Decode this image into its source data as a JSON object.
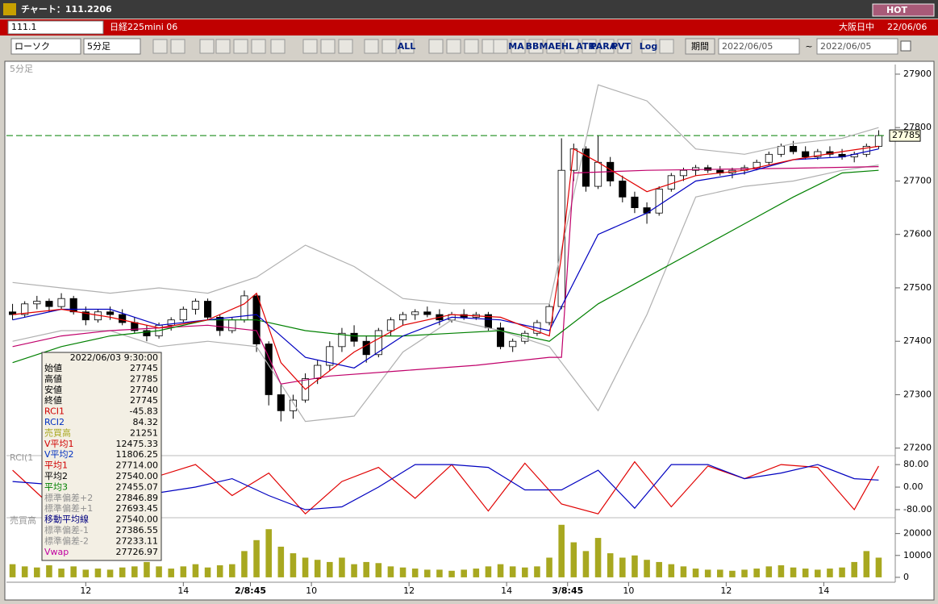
{
  "window": {
    "title": "チャート：111.2206",
    "hot": "HOT"
  },
  "toolbar": {
    "symbol": "111.1",
    "name": "日経225mini 06",
    "session": "大阪日中",
    "date": "22/06/06",
    "chart_type": "ローソク",
    "interval": "5分足",
    "period_button": "期間",
    "from": "2022/06/05",
    "tilde": "~",
    "to": "2022/06/05",
    "icon_labels": [
      "ALL",
      "MA",
      "BB",
      "MAE",
      "HL",
      "ATR",
      "PARA",
      "PVT",
      "Log"
    ]
  },
  "info_panel": {
    "datetime": "2022/06/03 9:30:00",
    "rows": [
      {
        "label": "始値",
        "value": "27745",
        "color": "#000000"
      },
      {
        "label": "高値",
        "value": "27785",
        "color": "#000000"
      },
      {
        "label": "安値",
        "value": "27740",
        "color": "#000000"
      },
      {
        "label": "終値",
        "value": "27745",
        "color": "#000000"
      },
      {
        "label": "RCI1",
        "value": "-45.83",
        "color": "#d00000"
      },
      {
        "label": "RCI2",
        "value": "84.32",
        "color": "#0030c0"
      },
      {
        "label": "売買高",
        "value": "21251",
        "color": "#a8a820"
      },
      {
        "label": "V平均1",
        "value": "12475.33",
        "color": "#d00000"
      },
      {
        "label": "V平均2",
        "value": "11806.25",
        "color": "#0030c0"
      },
      {
        "label": "平均1",
        "value": "27714.00",
        "color": "#d00000"
      },
      {
        "label": "平均2",
        "value": "27540.00",
        "color": "#000000"
      },
      {
        "label": "平均3",
        "value": "27455.07",
        "color": "#008000"
      },
      {
        "label": "標準偏差+2",
        "value": "27846.89",
        "color": "#909090"
      },
      {
        "label": "標準偏差+1",
        "value": "27693.45",
        "color": "#909090"
      },
      {
        "label": "移動平均線",
        "value": "27540.00",
        "color": "#000080"
      },
      {
        "label": "標準偏差-1",
        "value": "27386.55",
        "color": "#909090"
      },
      {
        "label": "標準偏差-2",
        "value": "27233.11",
        "color": "#909090"
      },
      {
        "label": "Vwap",
        "value": "27726.97",
        "color": "#c000a0"
      }
    ]
  },
  "chart_data": [
    {
      "type": "candlestick",
      "label": "5分足",
      "xlim": [
        -0.5,
        71.5
      ],
      "ylim": [
        27189,
        27912
      ],
      "yticks": [
        27200,
        27300,
        27400,
        27500,
        27600,
        27700,
        27800,
        27900
      ],
      "last_price": 27785,
      "last_price_color": "#008000",
      "ohlc": [
        [
          27455,
          27470,
          27440,
          27450
        ],
        [
          27450,
          27475,
          27445,
          27470
        ],
        [
          27470,
          27485,
          27460,
          27475
        ],
        [
          27475,
          27480,
          27455,
          27465
        ],
        [
          27465,
          27490,
          27460,
          27480
        ],
        [
          27480,
          27485,
          27450,
          27455
        ],
        [
          27455,
          27465,
          27430,
          27440
        ],
        [
          27440,
          27460,
          27435,
          27455
        ],
        [
          27455,
          27465,
          27440,
          27450
        ],
        [
          27450,
          27460,
          27430,
          27435
        ],
        [
          27435,
          27445,
          27415,
          27420
        ],
        [
          27420,
          27430,
          27400,
          27410
        ],
        [
          27410,
          27435,
          27405,
          27430
        ],
        [
          27430,
          27445,
          27420,
          27440
        ],
        [
          27440,
          27465,
          27435,
          27460
        ],
        [
          27460,
          27480,
          27450,
          27475
        ],
        [
          27475,
          27480,
          27440,
          27445
        ],
        [
          27445,
          27450,
          27410,
          27420
        ],
        [
          27420,
          27445,
          27415,
          27440
        ],
        [
          27440,
          27495,
          27435,
          27485
        ],
        [
          27485,
          27490,
          27380,
          27395
        ],
        [
          27395,
          27400,
          27280,
          27300
        ],
        [
          27300,
          27320,
          27250,
          27270
        ],
        [
          27270,
          27300,
          27255,
          27290
        ],
        [
          27290,
          27340,
          27285,
          27330
        ],
        [
          27330,
          27365,
          27320,
          27355
        ],
        [
          27355,
          27400,
          27345,
          27390
        ],
        [
          27390,
          27425,
          27380,
          27415
        ],
        [
          27415,
          27430,
          27390,
          27400
        ],
        [
          27400,
          27410,
          27360,
          27375
        ],
        [
          27375,
          27425,
          27370,
          27420
        ],
        [
          27420,
          27445,
          27410,
          27440
        ],
        [
          27440,
          27455,
          27430,
          27450
        ],
        [
          27450,
          27460,
          27440,
          27455
        ],
        [
          27455,
          27465,
          27445,
          27450
        ],
        [
          27450,
          27460,
          27430,
          27440
        ],
        [
          27440,
          27455,
          27435,
          27450
        ],
        [
          27450,
          27460,
          27440,
          27445
        ],
        [
          27445,
          27455,
          27440,
          27450
        ],
        [
          27450,
          27455,
          27420,
          27425
        ],
        [
          27425,
          27435,
          27385,
          27390
        ],
        [
          27390,
          27405,
          27380,
          27400
        ],
        [
          27400,
          27420,
          27395,
          27415
        ],
        [
          27415,
          27440,
          27410,
          27435
        ],
        [
          27435,
          27470,
          27430,
          27465
        ],
        [
          27465,
          27780,
          27460,
          27720
        ],
        [
          27720,
          27770,
          27700,
          27760
        ],
        [
          27760,
          27765,
          27680,
          27690
        ],
        [
          27690,
          27785,
          27685,
          27735
        ],
        [
          27735,
          27745,
          27690,
          27700
        ],
        [
          27700,
          27710,
          27660,
          27670
        ],
        [
          27670,
          27680,
          27640,
          27650
        ],
        [
          27650,
          27660,
          27620,
          27640
        ],
        [
          27640,
          27690,
          27635,
          27685
        ],
        [
          27685,
          27715,
          27680,
          27710
        ],
        [
          27710,
          27725,
          27700,
          27720
        ],
        [
          27720,
          27730,
          27710,
          27725
        ],
        [
          27725,
          27730,
          27715,
          27720
        ],
        [
          27720,
          27728,
          27710,
          27715
        ],
        [
          27715,
          27725,
          27705,
          27720
        ],
        [
          27720,
          27730,
          27712,
          27725
        ],
        [
          27725,
          27740,
          27720,
          27735
        ],
        [
          27735,
          27755,
          27730,
          27750
        ],
        [
          27750,
          27770,
          27745,
          27765
        ],
        [
          27765,
          27775,
          27750,
          27755
        ],
        [
          27755,
          27765,
          27740,
          27745
        ],
        [
          27745,
          27760,
          27740,
          27755
        ],
        [
          27755,
          27765,
          27745,
          27750
        ],
        [
          27750,
          27760,
          27740,
          27745
        ],
        [
          27745,
          27755,
          27735,
          27750
        ],
        [
          27750,
          27770,
          27745,
          27765
        ],
        [
          27765,
          27795,
          27760,
          27785
        ]
      ],
      "series": [
        {
          "name": "標準偏差+2",
          "color": "#b0b0b0",
          "x": [
            0,
            4,
            8,
            12,
            16,
            20,
            24,
            28,
            32,
            36,
            40,
            44,
            48,
            52,
            56,
            60,
            64,
            68,
            71
          ],
          "values": [
            27510,
            27500,
            27490,
            27500,
            27490,
            27520,
            27580,
            27540,
            27480,
            27470,
            27470,
            27470,
            27880,
            27850,
            27760,
            27750,
            27770,
            27780,
            27800
          ]
        },
        {
          "name": "標準偏差-2",
          "color": "#b0b0b0",
          "x": [
            0,
            4,
            8,
            12,
            16,
            20,
            24,
            28,
            32,
            36,
            40,
            44,
            48,
            52,
            56,
            60,
            64,
            68,
            71
          ],
          "values": [
            27400,
            27420,
            27420,
            27390,
            27400,
            27390,
            27250,
            27260,
            27380,
            27440,
            27420,
            27390,
            27270,
            27450,
            27670,
            27690,
            27700,
            27720,
            27730
          ]
        },
        {
          "name": "Vwap",
          "color": "#c0006a",
          "x": [
            0,
            4,
            8,
            12,
            16,
            20,
            22,
            26,
            32,
            38,
            44,
            45,
            46,
            52,
            58,
            64,
            71
          ],
          "values": [
            27390,
            27410,
            27420,
            27425,
            27430,
            27420,
            27320,
            27335,
            27345,
            27355,
            27370,
            27370,
            27715,
            27720,
            27722,
            27724,
            27727
          ]
        },
        {
          "name": "平均3",
          "color": "#008000",
          "x": [
            0,
            4,
            8,
            12,
            16,
            20,
            24,
            28,
            32,
            36,
            40,
            44,
            48,
            52,
            56,
            60,
            64,
            68,
            71
          ],
          "values": [
            27360,
            27390,
            27410,
            27420,
            27440,
            27440,
            27420,
            27410,
            27410,
            27415,
            27420,
            27400,
            27470,
            27520,
            27570,
            27620,
            27670,
            27715,
            27720
          ]
        },
        {
          "name": "平均2",
          "color": "#0000c0",
          "x": [
            0,
            4,
            8,
            12,
            16,
            20,
            24,
            28,
            32,
            36,
            40,
            44,
            48,
            52,
            56,
            60,
            64,
            68,
            71
          ],
          "values": [
            27440,
            27460,
            27460,
            27430,
            27440,
            27450,
            27370,
            27350,
            27410,
            27445,
            27440,
            27420,
            27600,
            27640,
            27700,
            27715,
            27740,
            27745,
            27760
          ]
        },
        {
          "name": "平均1",
          "color": "#e00000",
          "x": [
            0,
            4,
            8,
            12,
            16,
            19,
            20,
            22,
            24,
            28,
            32,
            36,
            40,
            44,
            45,
            46,
            48,
            52,
            56,
            60,
            64,
            68,
            71
          ],
          "values": [
            27450,
            27460,
            27445,
            27425,
            27440,
            27470,
            27490,
            27360,
            27310,
            27380,
            27430,
            27450,
            27445,
            27410,
            27560,
            27760,
            27735,
            27680,
            27710,
            27720,
            27740,
            27755,
            27765
          ]
        }
      ]
    },
    {
      "type": "line",
      "label": "RCI(1",
      "xlim": [
        -0.5,
        71.5
      ],
      "ylim": [
        -103,
        109
      ],
      "yticks": [
        {
          "value": 80,
          "label": "80.00"
        },
        {
          "value": 0,
          "label": "0.00"
        },
        {
          "value": -80,
          "label": "-80.00"
        }
      ],
      "series": [
        {
          "name": "RCI1",
          "color": "#e00000",
          "x": [
            0,
            3,
            6,
            9,
            12,
            15,
            18,
            21,
            24,
            27,
            30,
            33,
            36,
            39,
            42,
            45,
            48,
            51,
            54,
            57,
            60,
            63,
            66,
            69,
            71
          ],
          "values": [
            60,
            -60,
            70,
            -90,
            40,
            80,
            -30,
            50,
            -95,
            20,
            70,
            -40,
            80,
            -85,
            85,
            -60,
            -95,
            90,
            -70,
            75,
            30,
            80,
            70,
            -80,
            75
          ]
        },
        {
          "name": "RCI2",
          "color": "#0000c0",
          "x": [
            0,
            3,
            6,
            9,
            12,
            15,
            18,
            21,
            24,
            27,
            30,
            33,
            36,
            39,
            42,
            45,
            48,
            51,
            54,
            57,
            60,
            63,
            66,
            69,
            71
          ],
          "values": [
            20,
            10,
            50,
            20,
            -20,
            0,
            30,
            -30,
            -80,
            -70,
            0,
            80,
            80,
            70,
            -10,
            -10,
            60,
            -75,
            80,
            80,
            30,
            50,
            80,
            30,
            25
          ]
        }
      ]
    },
    {
      "type": "bar",
      "label": "売買高",
      "xlim": [
        -0.5,
        71.5
      ],
      "ylim": [
        -1500,
        26500
      ],
      "yticks": [
        0,
        10000,
        20000
      ],
      "color": "#a8a820",
      "values": [
        6000,
        5000,
        4500,
        5500,
        4000,
        5000,
        3500,
        4000,
        3500,
        4500,
        5000,
        7000,
        5000,
        4000,
        5000,
        6000,
        4500,
        5500,
        6000,
        12000,
        17000,
        22000,
        14000,
        11000,
        9000,
        8000,
        7000,
        9000,
        6000,
        7000,
        6500,
        5000,
        4500,
        4000,
        3500,
        3500,
        3000,
        3500,
        4000,
        5000,
        6000,
        5000,
        4500,
        5000,
        9000,
        24000,
        16000,
        12000,
        18000,
        11000,
        9000,
        10000,
        8000,
        7000,
        6000,
        5000,
        4000,
        3500,
        3500,
        3000,
        3500,
        4000,
        5000,
        5500,
        4500,
        4000,
        3500,
        4000,
        4500,
        7000,
        12000,
        9000
      ],
      "xticks": [
        {
          "value": 6,
          "label": "12"
        },
        {
          "value": 14,
          "label": "14"
        },
        {
          "value": 19.5,
          "label": "2/8:45"
        },
        {
          "value": 24.5,
          "label": "10"
        },
        {
          "value": 32.5,
          "label": "12"
        },
        {
          "value": 40.5,
          "label": "14"
        },
        {
          "value": 45.5,
          "label": "3/8:45"
        },
        {
          "value": 50.5,
          "label": "10"
        },
        {
          "value": 58.5,
          "label": "12"
        },
        {
          "value": 66.5,
          "label": "14"
        }
      ]
    }
  ]
}
